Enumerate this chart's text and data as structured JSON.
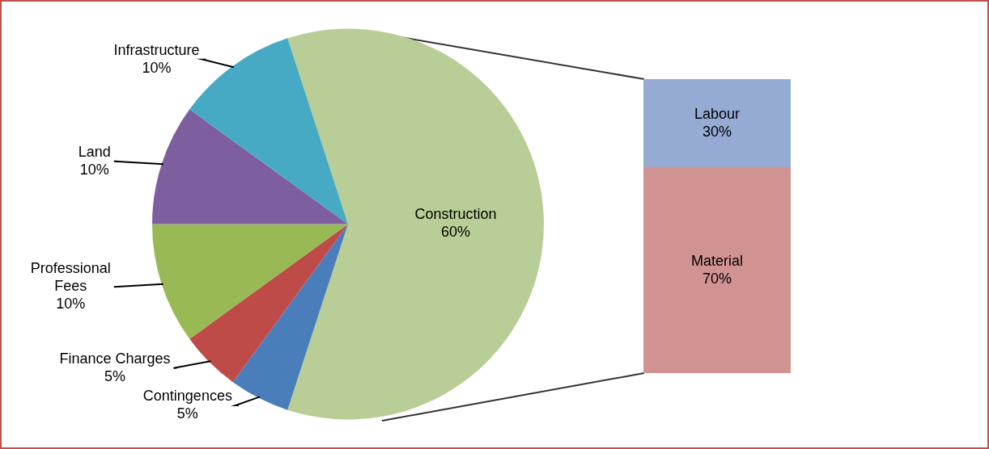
{
  "chart_data": [
    {
      "type": "pie",
      "categories": [
        "Construction",
        "Contingences",
        "Finance Charges",
        "Professional Fees",
        "Land",
        "Infrastructure"
      ],
      "values": [
        60,
        5,
        5,
        10,
        10,
        10
      ],
      "value_labels": [
        "60%",
        "5%",
        "5%",
        "10%",
        "10%",
        "10%"
      ],
      "colors": [
        "#b9cd96",
        "#4a7ebb",
        "#be4b48",
        "#98b954",
        "#7d5fa0",
        "#46aac5"
      ]
    },
    {
      "type": "bar",
      "stacked": true,
      "categories": [
        null
      ],
      "series": [
        {
          "name": "Material",
          "color": "#d19392",
          "values": [
            70
          ],
          "value_labels": [
            "70%"
          ]
        },
        {
          "name": "Labour",
          "color": "#95abd4",
          "values": [
            30
          ],
          "value_labels": [
            "30%"
          ]
        }
      ]
    }
  ]
}
